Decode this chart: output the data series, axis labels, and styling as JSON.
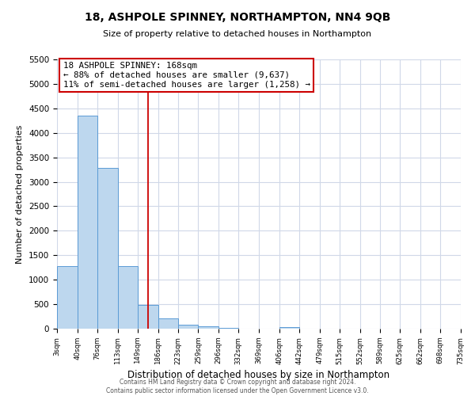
{
  "title_line1": "18, ASHPOLE SPINNEY, NORTHAMPTON, NN4 9QB",
  "title_line2": "Size of property relative to detached houses in Northampton",
  "xlabel": "Distribution of detached houses by size in Northampton",
  "ylabel": "Number of detached properties",
  "bin_edges": [
    3,
    40,
    76,
    113,
    149,
    186,
    223,
    259,
    296,
    332,
    369,
    406,
    442,
    479,
    515,
    552,
    589,
    625,
    662,
    698,
    735
  ],
  "bar_heights": [
    1270,
    4350,
    3290,
    1280,
    480,
    215,
    80,
    55,
    10,
    5,
    5,
    35,
    5,
    5,
    5,
    5,
    5,
    5,
    5,
    5
  ],
  "bar_color": "#bdd7ee",
  "bar_edge_color": "#5b9bd5",
  "property_line_x": 168,
  "property_line_color": "#cc0000",
  "annotation_title": "18 ASHPOLE SPINNEY: 168sqm",
  "annotation_line1": "← 88% of detached houses are smaller (9,637)",
  "annotation_line2": "11% of semi-detached houses are larger (1,258) →",
  "annotation_box_edge": "#cc0000",
  "ylim": [
    0,
    5500
  ],
  "yticks": [
    0,
    500,
    1000,
    1500,
    2000,
    2500,
    3000,
    3500,
    4000,
    4500,
    5000,
    5500
  ],
  "footer_line1": "Contains HM Land Registry data © Crown copyright and database right 2024.",
  "footer_line2": "Contains public sector information licensed under the Open Government Licence v3.0.",
  "bg_color": "#ffffff",
  "grid_color": "#d0d8e8",
  "tick_labels": [
    "3sqm",
    "40sqm",
    "76sqm",
    "113sqm",
    "149sqm",
    "186sqm",
    "223sqm",
    "259sqm",
    "296sqm",
    "332sqm",
    "369sqm",
    "406sqm",
    "442sqm",
    "479sqm",
    "515sqm",
    "552sqm",
    "589sqm",
    "625sqm",
    "662sqm",
    "698sqm",
    "735sqm"
  ]
}
